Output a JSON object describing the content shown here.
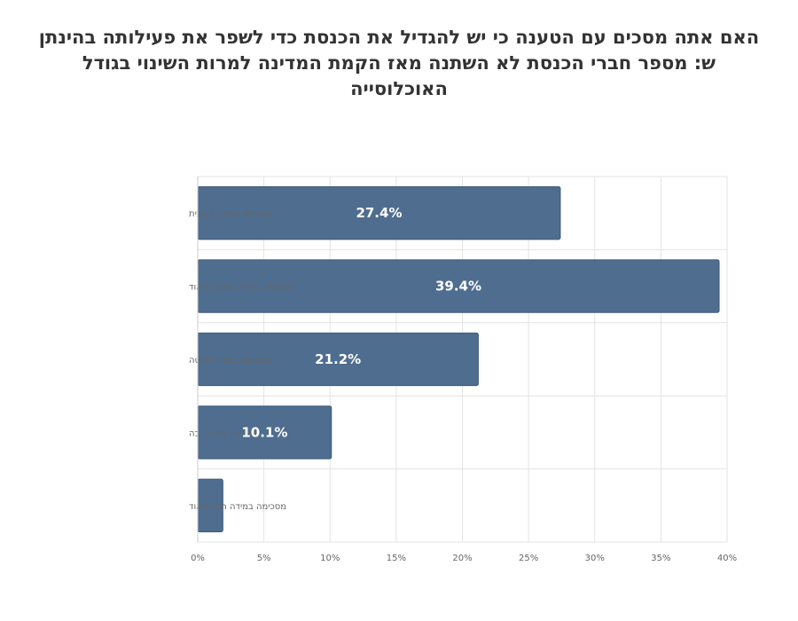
{
  "title_lines": [
    "האם אתה מסכים עם הטענה כי יש להגדיל את הכנסת כדי לשפר את פעילותה בהינתן",
    "ש: מספר חברי הכנסת לא השתנה מאז הקמת המדינה למרות השינוי בגודל",
    "האוכלוסייה"
  ],
  "colors": {
    "bar": "#4f6d8f",
    "bar_stroke": "#3e5a79",
    "grid": "#e3e3e3",
    "axis_text": "#666666"
  },
  "chart_data": {
    "type": "bar",
    "orientation": "horizontal",
    "categories": [
      "מסכימה במידה בינונית",
      "מסכימה במידה מעטה מאוד",
      "מסכימה במידה מעטה",
      "מסכימה מידה רבה",
      "מסכימה במידה רבה מאוד"
    ],
    "values": [
      27.4,
      39.4,
      21.2,
      10.1,
      1.9
    ],
    "data_labels": [
      "27.4%",
      "39.4%",
      "21.2%",
      "10.1%",
      ""
    ],
    "xlim": [
      0,
      40
    ],
    "xticks": [
      0,
      5,
      10,
      15,
      20,
      25,
      30,
      35,
      40
    ],
    "xtick_labels": [
      "0%",
      "5%",
      "10%",
      "15%",
      "20%",
      "25%",
      "30%",
      "35%",
      "40%"
    ],
    "grid": true,
    "legend": "none"
  }
}
